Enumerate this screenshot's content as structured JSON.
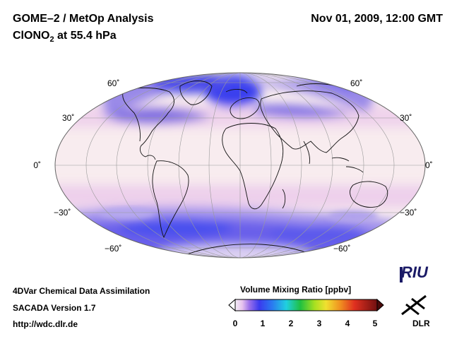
{
  "header": {
    "title": "GOME–2 / MetOp Analysis",
    "species_prefix": "ClONO",
    "species_sub": "2",
    "species_suffix": " at 55.4 hPa",
    "datetime": "Nov 01, 2009, 12:00 GMT"
  },
  "map": {
    "projection": "Mollweide",
    "lat_labels_left": [
      "60˚",
      "30˚",
      "0˚",
      "−30˚",
      "−60˚"
    ],
    "lat_labels_right": [
      "60˚",
      "30˚",
      "0˚",
      "−30˚",
      "−60˚"
    ],
    "ocean_color": "#f8ecef",
    "high_color": "#4a4ae6"
  },
  "footer": {
    "line1": "4DVar Chemical Data Assimilation",
    "line2": "SACADA Version 1.7",
    "line3": "http://wdc.dlr.de"
  },
  "colorbar": {
    "title": "Volume Mixing Ratio [ppbv]",
    "ticks": [
      "0",
      "1",
      "2",
      "3",
      "4",
      "5"
    ],
    "min": 0,
    "max": 5
  },
  "logos": {
    "riu": "RIU",
    "dlr": "DLR"
  }
}
